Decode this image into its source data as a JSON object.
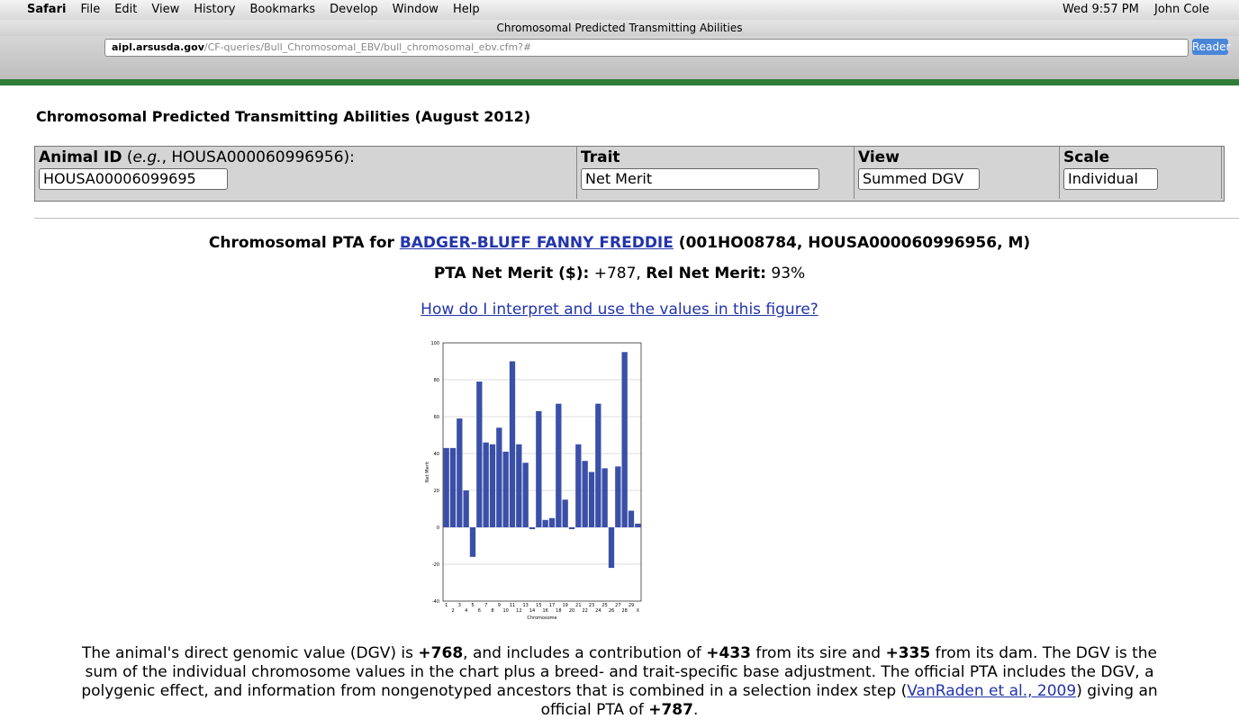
{
  "menu": {
    "items": [
      "Safari",
      "File",
      "Edit",
      "View",
      "History",
      "Bookmarks",
      "Develop",
      "Window",
      "Help"
    ],
    "clock": "Wed 9:57 PM",
    "user": "John Cole"
  },
  "window_title": "Chromosomal Predicted Transmitting Abilities",
  "address": {
    "domain": "aipl.arsusda.gov",
    "path": "/CF-queries/Bull_Chromosomal_EBV/bull_chromosomal_ebv.cfm?#",
    "reader": "Reader"
  },
  "heading": "Chromosomal Predicted Transmitting Abilities (August 2012)",
  "form": {
    "animal_label": "Animal ID",
    "hint_open": " (",
    "hint_italic": "e.g.",
    "hint_rest": ", HOUSA000060996956):",
    "animal_value": "HOUSA00006099695",
    "trait_label": "Trait",
    "trait_value": "Net Merit",
    "view_label": "View",
    "view_value": "Summed DGV",
    "scale_label": "Scale",
    "scale_value": "Individual"
  },
  "result": {
    "prefix": "Chromosomal PTA for ",
    "animal_link": "BADGER-BLUFF FANNY FREDDIE",
    "suffix": " (001HO08784, HOUSA000060996956, M)",
    "pta_label": "PTA Net Merit ($):",
    "pta_value": " +787, ",
    "rel_label": "Rel Net Merit:",
    "rel_value": " 93%",
    "help_link": "How do I interpret and use the values in this figure?"
  },
  "chart_data": {
    "type": "bar",
    "xlabel": "Chromosome",
    "ylabel": "Net Merit",
    "categories": [
      "1",
      "2",
      "3",
      "4",
      "5",
      "6",
      "7",
      "8",
      "9",
      "10",
      "11",
      "12",
      "13",
      "14",
      "15",
      "16",
      "17",
      "18",
      "19",
      "20",
      "21",
      "22",
      "23",
      "24",
      "25",
      "26",
      "27",
      "28",
      "29",
      "X"
    ],
    "values": [
      43,
      43,
      59,
      20,
      -16,
      79,
      46,
      45,
      54,
      41,
      90,
      45,
      35,
      -1,
      63,
      4,
      5,
      67,
      15,
      -1,
      45,
      36,
      30,
      67,
      32,
      -22,
      33,
      95,
      9,
      2
    ],
    "color": "#3a4fa8",
    "ylim": [
      -40,
      100
    ],
    "yticks": [
      -40,
      -20,
      0,
      20,
      40,
      60,
      80,
      100
    ],
    "grid": true
  },
  "paragraph": [
    "The animal's direct genomic value (DGV) is ",
    "+768",
    ", and includes a contribution of ",
    "+433",
    " from its sire and ",
    "+335",
    " from its dam. The DGV is the sum of the individual chromosome values in the chart plus a breed- and trait-specific base adjustment. The official PTA includes the DGV, a polygenic effect, and information from nongenotyped ancestors that is combined in a selection index step (",
    "VanRaden et al., 2009",
    ") giving an official PTA of ",
    "+787",
    "."
  ]
}
